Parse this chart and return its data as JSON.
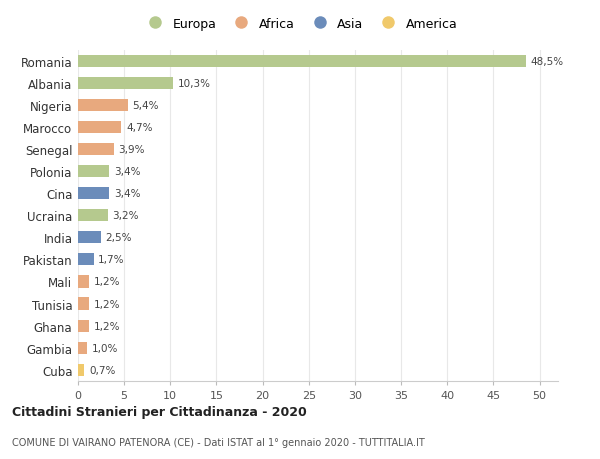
{
  "countries": [
    "Romania",
    "Albania",
    "Nigeria",
    "Marocco",
    "Senegal",
    "Polonia",
    "Cina",
    "Ucraina",
    "India",
    "Pakistan",
    "Mali",
    "Tunisia",
    "Ghana",
    "Gambia",
    "Cuba"
  ],
  "values": [
    48.5,
    10.3,
    5.4,
    4.7,
    3.9,
    3.4,
    3.4,
    3.2,
    2.5,
    1.7,
    1.2,
    1.2,
    1.2,
    1.0,
    0.7
  ],
  "labels": [
    "48,5%",
    "10,3%",
    "5,4%",
    "4,7%",
    "3,9%",
    "3,4%",
    "3,4%",
    "3,2%",
    "2,5%",
    "1,7%",
    "1,2%",
    "1,2%",
    "1,2%",
    "1,0%",
    "0,7%"
  ],
  "continents": [
    "Europa",
    "Europa",
    "Africa",
    "Africa",
    "Africa",
    "Europa",
    "Asia",
    "Europa",
    "Asia",
    "Asia",
    "Africa",
    "Africa",
    "Africa",
    "Africa",
    "America"
  ],
  "continent_colors": {
    "Europa": "#b5c98e",
    "Africa": "#e8a97e",
    "Asia": "#6b8cba",
    "America": "#f0c96b"
  },
  "legend_order": [
    "Europa",
    "Africa",
    "Asia",
    "America"
  ],
  "title1": "Cittadini Stranieri per Cittadinanza - 2020",
  "title2": "COMUNE DI VAIRANO PATENORA (CE) - Dati ISTAT al 1° gennaio 2020 - TUTTITALIA.IT",
  "xlim": [
    0,
    52
  ],
  "xticks": [
    0,
    5,
    10,
    15,
    20,
    25,
    30,
    35,
    40,
    45,
    50
  ],
  "background_color": "#ffffff",
  "grid_color": "#e8e8e8"
}
